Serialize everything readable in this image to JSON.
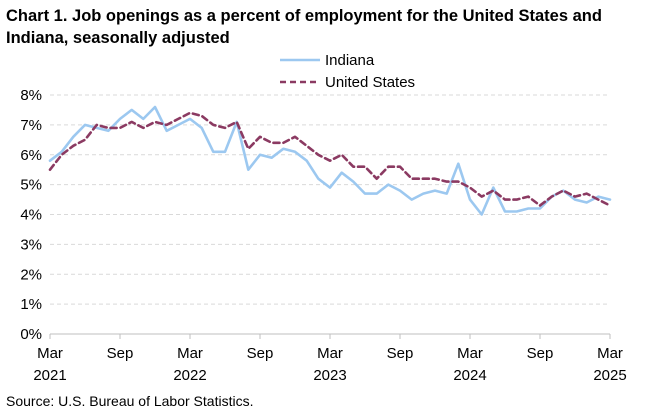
{
  "chart_data": {
    "type": "line",
    "title": "Chart 1. Job openings as a percent of employment for the United States and Indiana, seasonally adjusted",
    "source": "Source: U.S. Bureau of Labor Statistics.",
    "xlabel": "",
    "ylabel": "",
    "ylim": [
      0,
      8
    ],
    "yticks": [
      "0%",
      "1%",
      "2%",
      "3%",
      "4%",
      "5%",
      "6%",
      "7%",
      "8%"
    ],
    "xticks": [
      {
        "index": 0,
        "month": "Mar",
        "year": "2021"
      },
      {
        "index": 6,
        "month": "Sep",
        "year": ""
      },
      {
        "index": 12,
        "month": "Mar",
        "year": "2022"
      },
      {
        "index": 18,
        "month": "Sep",
        "year": ""
      },
      {
        "index": 24,
        "month": "Mar",
        "year": "2023"
      },
      {
        "index": 30,
        "month": "Sep",
        "year": ""
      },
      {
        "index": 36,
        "month": "Mar",
        "year": "2024"
      },
      {
        "index": 42,
        "month": "Sep",
        "year": ""
      },
      {
        "index": 48,
        "month": "Mar",
        "year": "2025"
      }
    ],
    "x_start": "Mar 2021",
    "x_end": "Mar 2025",
    "grid": true,
    "legend_position": "top-right",
    "series": [
      {
        "name": "Indiana",
        "color": "#9cc8f0",
        "style": "solid",
        "values": [
          5.8,
          6.1,
          6.6,
          7.0,
          6.9,
          6.8,
          7.2,
          7.5,
          7.2,
          7.6,
          6.8,
          7.0,
          7.2,
          6.9,
          6.1,
          6.1,
          7.1,
          5.5,
          6.0,
          5.9,
          6.2,
          6.1,
          5.8,
          5.2,
          4.9,
          5.4,
          5.1,
          4.7,
          4.7,
          5.0,
          4.8,
          4.5,
          4.7,
          4.8,
          4.7,
          5.7,
          4.5,
          4.0,
          4.9,
          4.1,
          4.1,
          4.2,
          4.2,
          4.6,
          4.8,
          4.5,
          4.4,
          4.6,
          4.5
        ]
      },
      {
        "name": "United States",
        "color": "#8b3a62",
        "style": "dashed",
        "values": [
          5.5,
          6.0,
          6.3,
          6.5,
          7.0,
          6.9,
          6.9,
          7.1,
          6.9,
          7.1,
          7.0,
          7.2,
          7.4,
          7.3,
          7.0,
          6.9,
          7.1,
          6.2,
          6.6,
          6.4,
          6.4,
          6.6,
          6.3,
          6.0,
          5.8,
          6.0,
          5.6,
          5.6,
          5.2,
          5.6,
          5.6,
          5.2,
          5.2,
          5.2,
          5.1,
          5.1,
          4.9,
          4.6,
          4.8,
          4.5,
          4.5,
          4.6,
          4.3,
          4.6,
          4.8,
          4.6,
          4.7,
          4.5,
          4.3
        ]
      }
    ]
  }
}
